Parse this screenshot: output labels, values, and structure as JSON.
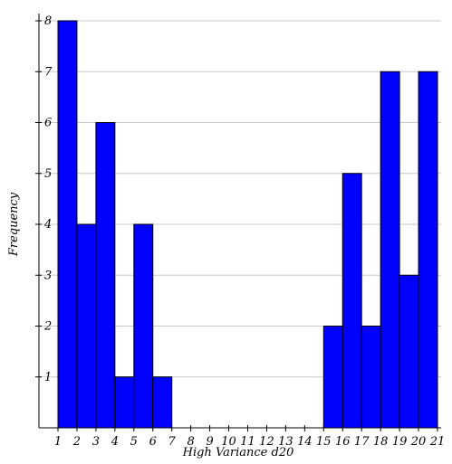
{
  "chart_data": {
    "type": "bar",
    "title": "",
    "xlabel": "High Variance d20",
    "ylabel": "Frequency",
    "bins": [
      {
        "start": 1,
        "end": 2,
        "count": 8
      },
      {
        "start": 2,
        "end": 3,
        "count": 4
      },
      {
        "start": 3,
        "end": 4,
        "count": 6
      },
      {
        "start": 4,
        "end": 5,
        "count": 1
      },
      {
        "start": 5,
        "end": 6,
        "count": 4
      },
      {
        "start": 6,
        "end": 7,
        "count": 1
      },
      {
        "start": 7,
        "end": 8,
        "count": 0
      },
      {
        "start": 8,
        "end": 9,
        "count": 0
      },
      {
        "start": 9,
        "end": 10,
        "count": 0
      },
      {
        "start": 10,
        "end": 11,
        "count": 0
      },
      {
        "start": 11,
        "end": 12,
        "count": 0
      },
      {
        "start": 12,
        "end": 13,
        "count": 0
      },
      {
        "start": 13,
        "end": 14,
        "count": 0
      },
      {
        "start": 14,
        "end": 15,
        "count": 0
      },
      {
        "start": 15,
        "end": 16,
        "count": 2
      },
      {
        "start": 16,
        "end": 17,
        "count": 5
      },
      {
        "start": 17,
        "end": 18,
        "count": 2
      },
      {
        "start": 18,
        "end": 19,
        "count": 7
      },
      {
        "start": 19,
        "end": 20,
        "count": 3
      },
      {
        "start": 20,
        "end": 21,
        "count": 7
      }
    ],
    "x_ticks": [
      "1",
      "2",
      "3",
      "4",
      "5",
      "6",
      "7",
      "8",
      "9",
      "10",
      "11",
      "12",
      "13",
      "14",
      "15",
      "16",
      "17",
      "18",
      "19",
      "20",
      "21"
    ],
    "y_ticks": [
      "1",
      "2",
      "3",
      "4",
      "5",
      "6",
      "7",
      "8"
    ],
    "xlim": [
      1,
      21
    ],
    "ylim": [
      0,
      8
    ],
    "grid": true,
    "bar_color": "#0000ff",
    "bar_edge_color": "#000000",
    "grid_color": "#c8c8c8"
  }
}
